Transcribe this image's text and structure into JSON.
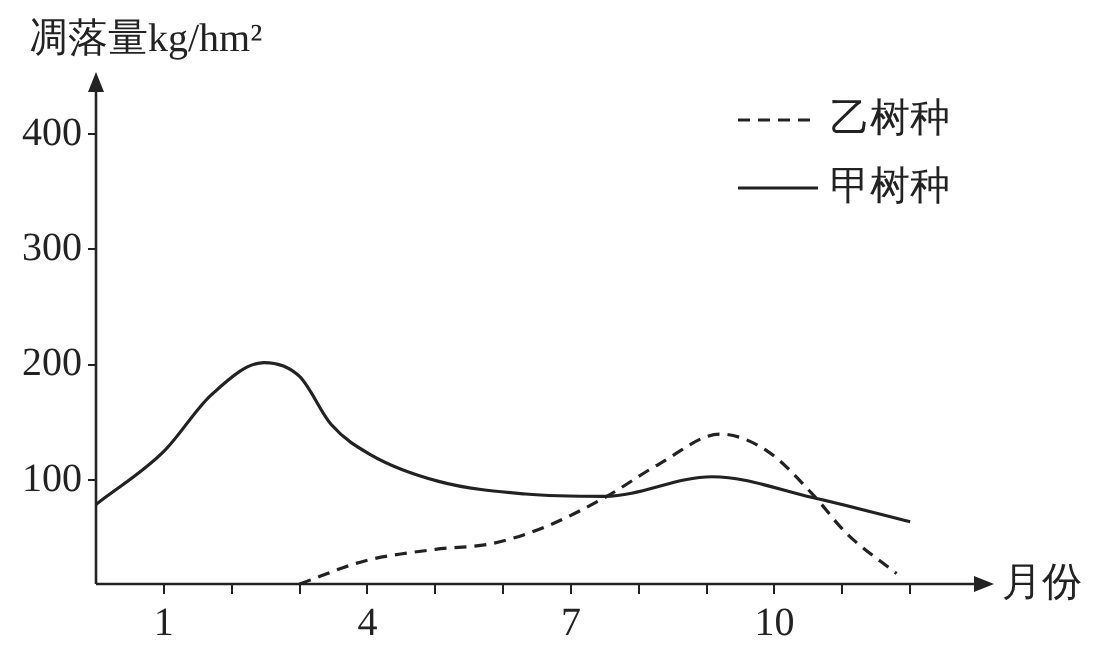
{
  "chart_data": {
    "type": "line",
    "ylabel": "凋落量kg/hm²",
    "xlabel": "月份",
    "xlim": [
      0,
      13
    ],
    "xticks": [
      {
        "value": 1,
        "label": "1"
      },
      {
        "value": 2,
        "label": null
      },
      {
        "value": 3,
        "label": null
      },
      {
        "value": 4,
        "label": "4"
      },
      {
        "value": 5,
        "label": null
      },
      {
        "value": 6,
        "label": null
      },
      {
        "value": 7,
        "label": "7"
      },
      {
        "value": 8,
        "label": null
      },
      {
        "value": 9,
        "label": null
      },
      {
        "value": 10,
        "label": "10"
      },
      {
        "value": 11,
        "label": null
      },
      {
        "value": 12,
        "label": null
      }
    ],
    "ylim": [
      10,
      440
    ],
    "yticks": [
      100,
      200,
      300,
      400
    ],
    "grid": false,
    "legend": "top right",
    "marker": "none",
    "series": [
      {
        "name": "乙树种",
        "color": "#222222",
        "line_style": "dashed",
        "x": [
          3.0,
          3.96,
          5.0,
          5.83,
          6.6,
          7.5,
          8.3,
          9.2,
          9.9,
          10.56,
          11.06,
          11.8
        ],
        "values": [
          10,
          30,
          40,
          45,
          59,
          85,
          114,
          140,
          125,
          88,
          54,
          19
        ]
      },
      {
        "name": "甲树种",
        "color": "#222222",
        "line_style": "solid",
        "x": [
          0,
          1.0,
          1.7,
          2.48,
          3.0,
          3.47,
          4.05,
          5.05,
          6.33,
          7.5,
          9.08,
          10.56,
          12.0
        ],
        "values": [
          79,
          125,
          174,
          202,
          190,
          148,
          122,
          99,
          88,
          86,
          103,
          85,
          64
        ]
      }
    ]
  }
}
